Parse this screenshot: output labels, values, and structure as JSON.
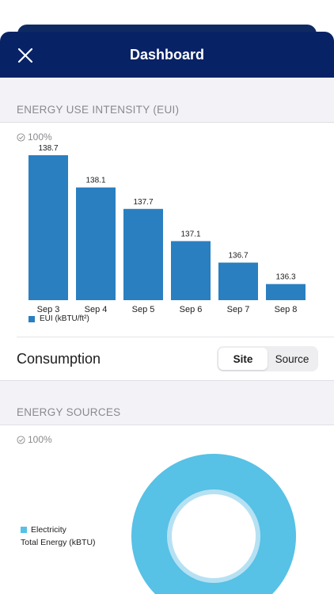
{
  "header": {
    "title": "Dashboard"
  },
  "eui_section": {
    "title": "ENERGY USE INTENSITY (EUI)",
    "percent": "100%"
  },
  "chart_data": {
    "type": "bar",
    "categories": [
      "Sep 3",
      "Sep 4",
      "Sep 5",
      "Sep 6",
      "Sep 7",
      "Sep 8"
    ],
    "values": [
      138.7,
      138.1,
      137.7,
      137.1,
      136.7,
      136.3
    ],
    "value_labels": [
      "138.7",
      "138.1",
      "137.7",
      "137.1",
      "136.7",
      "136.3"
    ],
    "series": [
      {
        "name": "EUI (kBTU/ft²)",
        "values": [
          138.7,
          138.1,
          137.7,
          137.1,
          136.7,
          136.3
        ]
      }
    ],
    "ylim": [
      136.0,
      138.7
    ],
    "legend": "bottom-left",
    "color": "#2a7fc0"
  },
  "consumption": {
    "label": "Consumption",
    "options": [
      "Site",
      "Source"
    ],
    "selected": "Site"
  },
  "sources_section": {
    "title": "ENERGY SOURCES",
    "percent": "100%"
  },
  "sources_legend": {
    "series": "Electricity",
    "caption": "Total Energy (kBTU)"
  },
  "colors": {
    "header": "#082266",
    "bar": "#2a7fc0",
    "donut_outer": "#57c1e6",
    "donut_inner": "#b6e1f3"
  }
}
